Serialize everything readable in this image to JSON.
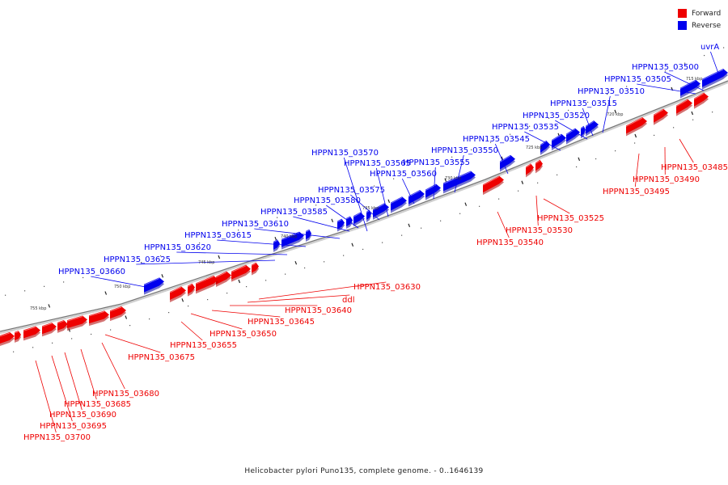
{
  "legend": {
    "forward_label": "Forward",
    "reverse_label": "Reverse",
    "forward_color": "#ee0000",
    "reverse_color": "#0000ee"
  },
  "caption": "Helicobacter pylori Puno135, complete genome. - 0..1646139",
  "kbp_labels": [
    "715 kbp",
    "720 kbp",
    "725 kbp",
    "730 kbp",
    "735 kbp",
    "740 kbp",
    "745 kbp",
    "750 kbp",
    "755 kbp"
  ],
  "reverse_genes": [
    "uvrA",
    "HPPN135_03500",
    "HPPN135_03505",
    "HPPN135_03510",
    "HPPN135_03515",
    "HPPN135_03520",
    "HPPN135_03535",
    "HPPN135_03545",
    "HPPN135_03550",
    "HPPN135_03555",
    "HPPN135_03560",
    "HPPN135_03565",
    "HPPN135_03570",
    "HPPN135_03575",
    "HPPN135_03580",
    "HPPN135_03585",
    "HPPN135_03610",
    "HPPN135_03615",
    "HPPN135_03620",
    "HPPN135_03625",
    "HPPN135_03660"
  ],
  "forward_genes": [
    "HPPN135_03485",
    "HPPN135_03490",
    "HPPN135_03495",
    "HPPN135_03525",
    "HPPN135_03530",
    "HPPN135_03540",
    "HPPN135_03630",
    "ddl",
    "HPPN135_03640",
    "HPPN135_03645",
    "HPPN135_03650",
    "HPPN135_03655",
    "HPPN135_03675",
    "HPPN135_03680",
    "HPPN135_03685",
    "HPPN135_03690",
    "HPPN135_03695",
    "HPPN135_03700"
  ]
}
